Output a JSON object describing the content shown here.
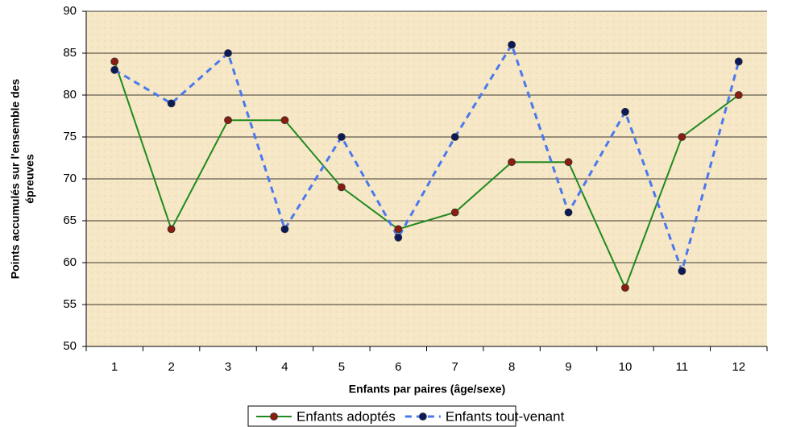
{
  "chart_data": {
    "type": "line",
    "x_label": "Enfants par paires (âge/sexe)",
    "y_label": [
      "Points accumulés sur l'ensemble des",
      "épreuves"
    ],
    "categories": [
      1,
      2,
      3,
      4,
      5,
      6,
      7,
      8,
      9,
      10,
      11,
      12
    ],
    "series": [
      {
        "name": "Enfants adoptés",
        "color": "#1f8a1f",
        "marker_color": "#8b1c10",
        "dash": false,
        "values": [
          84,
          64,
          77,
          77,
          69,
          64,
          66,
          72,
          72,
          57,
          75,
          80
        ]
      },
      {
        "name": "Enfants tout-venant",
        "color": "#4a78ee",
        "marker_color": "#0c1a5a",
        "dash": true,
        "values": [
          83,
          79,
          85,
          64,
          75,
          63,
          75,
          86,
          66,
          78,
          59,
          84
        ]
      }
    ],
    "ylim": [
      50,
      90
    ],
    "yticks": [
      50,
      55,
      60,
      65,
      70,
      75,
      80,
      85,
      90
    ],
    "grid": true,
    "legend": "bottom"
  }
}
